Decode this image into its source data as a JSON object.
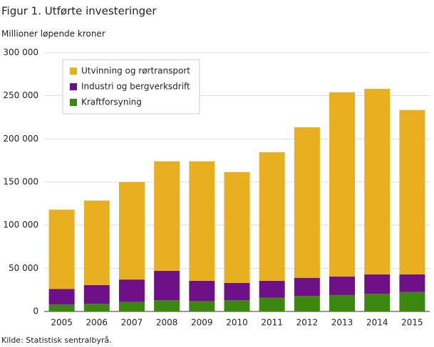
{
  "chart_data": {
    "type": "bar",
    "stacked": true,
    "title": "Figur 1. Utførte investeringer",
    "subtitle": "Millioner løpende kroner",
    "source": "Kilde: Statistisk sentralbyrå.",
    "categories": [
      "2005",
      "2006",
      "2007",
      "2008",
      "2009",
      "2010",
      "2011",
      "2012",
      "2013",
      "2014",
      "2015"
    ],
    "series": [
      {
        "name": "Utvinning og rørtransport",
        "color": "#e8b021",
        "values": [
          92000,
          98000,
          113000,
          127000,
          138500,
          128500,
          149000,
          174500,
          213500,
          215000,
          190500
        ]
      },
      {
        "name": "Industri og bergverksdrift",
        "color": "#6e1087",
        "values": [
          18000,
          21500,
          26000,
          34000,
          23500,
          20000,
          19500,
          21000,
          21500,
          22500,
          20500
        ]
      },
      {
        "name": "Kraftforsyning",
        "color": "#3b870f",
        "values": [
          8000,
          9000,
          11000,
          13000,
          12000,
          13000,
          16000,
          18000,
          19000,
          20500,
          22500
        ]
      }
    ],
    "ylim": [
      0,
      300000
    ],
    "yticks": [
      {
        "value": 0,
        "label": "0"
      },
      {
        "value": 50000,
        "label": "50 000"
      },
      {
        "value": 100000,
        "label": "100 000"
      },
      {
        "value": 150000,
        "label": "150 000"
      },
      {
        "value": 200000,
        "label": "200 000"
      },
      {
        "value": 250000,
        "label": "250 000"
      },
      {
        "value": 300000,
        "label": "300 000"
      }
    ],
    "grid": true
  }
}
